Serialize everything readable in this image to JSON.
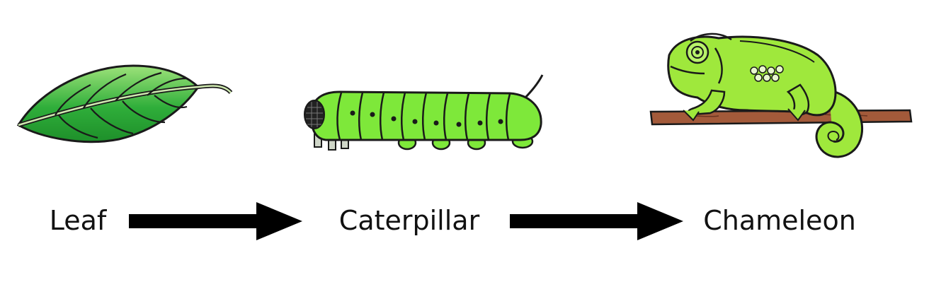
{
  "food_chain": {
    "organisms": [
      {
        "label": "Leaf",
        "illustration": "leaf-icon"
      },
      {
        "label": "Caterpillar",
        "illustration": "caterpillar-icon"
      },
      {
        "label": "Chameleon",
        "illustration": "chameleon-icon"
      }
    ],
    "arrows": [
      {
        "from": "Leaf",
        "to": "Caterpillar",
        "icon": "right-arrow-icon"
      },
      {
        "from": "Caterpillar",
        "to": "Chameleon",
        "icon": "right-arrow-icon"
      }
    ]
  },
  "colors": {
    "leaf_green": "#2fae3a",
    "caterpillar_green": "#7ee83a",
    "chameleon_green": "#9fe83c",
    "branch_brown": "#a35a3a",
    "outline": "#1a1a1a",
    "arrow": "#000000"
  }
}
